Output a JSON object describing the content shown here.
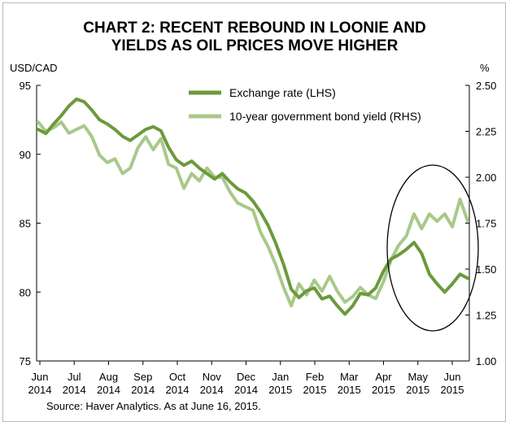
{
  "chart_data": {
    "type": "line",
    "title_line1": "CHART 2: RECENT REBOUND IN LOONIE AND",
    "title_line2": "YIELDS AS OIL PRICES MOVE HIGHER",
    "left_axis": {
      "label": "USD/CAD",
      "ylim": [
        75,
        95
      ],
      "ticks": [
        "95",
        "90",
        "85",
        "80",
        "75"
      ]
    },
    "right_axis": {
      "label": "%",
      "ylim": [
        1.0,
        2.5
      ],
      "ticks": [
        "2.50",
        "2.25",
        "2.00",
        "1.75",
        "1.50",
        "1.25",
        "1.00"
      ]
    },
    "x_ticks": [
      [
        "Jun",
        "2014"
      ],
      [
        "Jul",
        "2014"
      ],
      [
        "Aug",
        "2014"
      ],
      [
        "Sep",
        "2014"
      ],
      [
        "Oct",
        "2014"
      ],
      [
        "Nov",
        "2014"
      ],
      [
        "Dec",
        "2014"
      ],
      [
        "Jan",
        "2015"
      ],
      [
        "Feb",
        "2015"
      ],
      [
        "Mar",
        "2015"
      ],
      [
        "Apr",
        "2015"
      ],
      [
        "May",
        "2015"
      ],
      [
        "Jun",
        "2015"
      ]
    ],
    "series": [
      {
        "name": "Exchange rate (LHS)",
        "axis": "left",
        "color": "#6b9a3b",
        "values": [
          91.8,
          91.5,
          92.2,
          92.8,
          93.5,
          94.0,
          93.8,
          93.2,
          92.5,
          92.2,
          91.8,
          91.3,
          91.0,
          91.4,
          91.8,
          92.0,
          91.7,
          90.5,
          89.6,
          89.2,
          89.5,
          89.0,
          88.6,
          88.2,
          88.6,
          88.0,
          87.5,
          87.2,
          86.6,
          85.8,
          84.8,
          83.5,
          82.0,
          80.2,
          79.6,
          80.1,
          80.3,
          79.5,
          79.7,
          79.0,
          78.4,
          79.0,
          79.9,
          79.8,
          80.3,
          81.5,
          82.4,
          82.7,
          83.1,
          83.6,
          82.8,
          81.3,
          80.6,
          80.0,
          80.6,
          81.3,
          81.0
        ]
      },
      {
        "name": "10-year government bond yield (RHS)",
        "axis": "right",
        "color": "#a8c98a",
        "values": [
          2.3,
          2.25,
          2.27,
          2.3,
          2.24,
          2.26,
          2.28,
          2.22,
          2.12,
          2.08,
          2.1,
          2.02,
          2.05,
          2.16,
          2.22,
          2.15,
          2.21,
          2.07,
          2.05,
          1.94,
          2.02,
          1.98,
          2.05,
          2.0,
          2.0,
          1.92,
          1.86,
          1.84,
          1.82,
          1.7,
          1.62,
          1.52,
          1.4,
          1.3,
          1.42,
          1.36,
          1.44,
          1.38,
          1.46,
          1.38,
          1.32,
          1.35,
          1.4,
          1.36,
          1.34,
          1.43,
          1.55,
          1.63,
          1.68,
          1.8,
          1.72,
          1.8,
          1.76,
          1.8,
          1.73,
          1.88,
          1.76
        ]
      }
    ],
    "annotation": "circle around May–Jun 2015",
    "grid": false,
    "legend_position": "top-center"
  },
  "source": "Source: Haver Analytics. As at June 16, 2015."
}
